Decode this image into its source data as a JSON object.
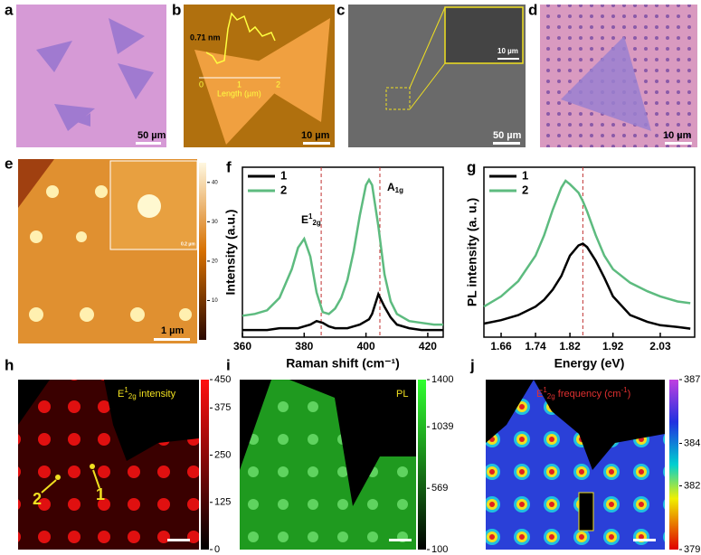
{
  "panel_labels": [
    "a",
    "b",
    "c",
    "d",
    "e",
    "f",
    "g",
    "h",
    "i",
    "j"
  ],
  "scale_bars": {
    "a": "50 µm",
    "b": "10 µm",
    "c_inset": "10 µm",
    "c": "50 µm",
    "d": "10 µm",
    "e_inset": "0.2 µm",
    "e": "1 µm"
  },
  "b_inset": {
    "height": "0.71 nm",
    "xlabel": "Length (µm)",
    "xticks": [
      "0",
      "1",
      "2"
    ]
  },
  "colorbars": {
    "e": {
      "lim": [
        0,
        45
      ],
      "ticks": [
        40,
        30,
        20,
        10
      ]
    },
    "h": {
      "lim": [
        0,
        450
      ],
      "ticks": [
        450,
        375,
        250,
        125,
        0
      ]
    },
    "i": {
      "lim": [
        100,
        1400
      ],
      "ticks": [
        1400,
        1039,
        569,
        100
      ]
    },
    "j": {
      "lim": [
        379,
        387
      ],
      "ticks": [
        387,
        384,
        382,
        379
      ]
    }
  },
  "map_annotations": {
    "h": {
      "base": "E",
      "sup": "1",
      "sub": "2g",
      "rest": " intensity"
    },
    "h_points": [
      "2",
      "1"
    ],
    "i": "PL",
    "j": {
      "base": "E",
      "sup": "1",
      "sub": "2g",
      "rest": " frequency (cm",
      "unit_sup": "-1",
      "close": ")"
    }
  },
  "chart_data": [
    {
      "type": "line",
      "xlabel": "Raman shift (cm⁻¹)",
      "ylabel": "Intensity (a.u.)",
      "xlim": [
        360,
        425
      ],
      "xticks": [
        360,
        380,
        400,
        420
      ],
      "ylim": [
        0,
        0.95
      ],
      "legend": "upper left",
      "vlines": [
        385.5,
        404.5
      ],
      "annotations": [
        {
          "base": "E",
          "sup": "1",
          "sub": "2g"
        },
        {
          "base": "A",
          "sub": "1g"
        }
      ],
      "x": [
        360,
        364,
        368,
        372,
        376,
        378,
        380,
        382,
        384,
        386,
        388,
        390,
        392,
        394,
        396,
        398,
        400,
        401,
        402,
        404,
        406,
        408,
        410,
        414,
        418,
        422,
        425
      ],
      "series": [
        {
          "name": "1",
          "color": "#000000",
          "values": [
            0.04,
            0.04,
            0.04,
            0.05,
            0.05,
            0.05,
            0.06,
            0.07,
            0.09,
            0.08,
            0.06,
            0.05,
            0.05,
            0.05,
            0.06,
            0.07,
            0.09,
            0.1,
            0.13,
            0.24,
            0.17,
            0.11,
            0.07,
            0.05,
            0.04,
            0.04,
            0.04
          ]
        },
        {
          "name": "2",
          "color": "#5dbb7f",
          "values": [
            0.12,
            0.13,
            0.15,
            0.22,
            0.38,
            0.5,
            0.55,
            0.45,
            0.25,
            0.14,
            0.13,
            0.16,
            0.22,
            0.32,
            0.48,
            0.68,
            0.85,
            0.88,
            0.85,
            0.62,
            0.35,
            0.2,
            0.13,
            0.09,
            0.08,
            0.07,
            0.07
          ]
        }
      ]
    },
    {
      "type": "line",
      "xlabel": "Energy (eV)",
      "ylabel": "PL intensity (a. u.)",
      "xlim": [
        1.62,
        2.11
      ],
      "xticks": [
        1.66,
        1.74,
        1.82,
        1.92,
        2.03
      ],
      "ylim": [
        0,
        1
      ],
      "legend": "upper left",
      "vlines": [
        1.85
      ],
      "x": [
        1.62,
        1.66,
        1.7,
        1.74,
        1.76,
        1.78,
        1.8,
        1.81,
        1.82,
        1.84,
        1.85,
        1.86,
        1.88,
        1.9,
        1.92,
        1.96,
        2.0,
        2.03,
        2.07,
        2.1
      ],
      "series": [
        {
          "name": "1",
          "color": "#000000",
          "values": [
            0.08,
            0.1,
            0.13,
            0.18,
            0.22,
            0.28,
            0.36,
            0.42,
            0.48,
            0.54,
            0.55,
            0.53,
            0.45,
            0.35,
            0.24,
            0.13,
            0.09,
            0.07,
            0.06,
            0.05
          ]
        },
        {
          "name": "2",
          "color": "#5dbb7f",
          "values": [
            0.18,
            0.24,
            0.33,
            0.48,
            0.6,
            0.75,
            0.88,
            0.92,
            0.9,
            0.85,
            0.8,
            0.74,
            0.6,
            0.48,
            0.4,
            0.32,
            0.27,
            0.24,
            0.21,
            0.2
          ]
        }
      ]
    }
  ]
}
